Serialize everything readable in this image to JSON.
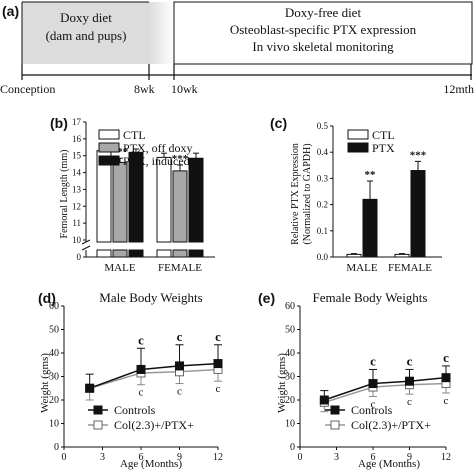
{
  "panel_a": {
    "label": "(a)",
    "box1_line1": "Doxy diet",
    "box1_line2": "(dam and pups)",
    "box2_line1": "Doxy-free diet",
    "box2_line2": "Osteoblast-specific PTX expression",
    "box2_line3": "In vivo skeletal monitoring",
    "timeline_labels": [
      "Conception",
      "8wk",
      "10wk",
      "12mth"
    ]
  },
  "colors": {
    "ctl_fill": "#ffffff",
    "ptx_off_fill": "#a8a8a8",
    "ptx_induced_fill": "#111111",
    "box1_fill": "#dcdcdc"
  },
  "chart_data": [
    {
      "panel": "(b)",
      "type": "bar",
      "ylabel": "Femoral Length (mm)",
      "ylim": [
        10,
        17
      ],
      "axis_break": [
        0,
        10
      ],
      "yticks": [
        "0",
        "10",
        "11",
        "12",
        "13",
        "14",
        "15",
        "16",
        "17"
      ],
      "categories": [
        "MALE",
        "FEMALE"
      ],
      "series": [
        {
          "name": "CTL",
          "values": [
            15.3,
            14.9
          ],
          "errors": [
            0.15,
            0.25
          ]
        },
        {
          "name": "PTX, off doxy",
          "values": [
            14.6,
            14.1
          ],
          "errors": [
            0.25,
            0.35
          ]
        },
        {
          "name": "PTX, induced",
          "values": [
            15.2,
            14.85
          ],
          "errors": [
            0.2,
            0.3
          ]
        }
      ],
      "annotations": [
        {
          "category": "MALE",
          "series": "PTX, off doxy",
          "text": "***"
        },
        {
          "category": "FEMALE",
          "series": "PTX, off doxy",
          "text": "***"
        }
      ],
      "legend": "top-right"
    },
    {
      "panel": "(c)",
      "type": "bar",
      "ylabel_line1": "Relative PTX Expression",
      "ylabel_line2": "(Normalized to GAPDH)",
      "ylim": [
        0,
        0.5
      ],
      "yticks": [
        "0.0",
        "0.1",
        "0.2",
        "0.3",
        "0.4",
        "0.5"
      ],
      "categories": [
        "MALE",
        "FEMALE"
      ],
      "series": [
        {
          "name": "CTL",
          "values": [
            0.01,
            0.01
          ],
          "errors": [
            0.003,
            0.003
          ]
        },
        {
          "name": "PTX",
          "values": [
            0.22,
            0.33
          ],
          "errors": [
            0.07,
            0.035
          ]
        }
      ],
      "annotations": [
        {
          "category": "MALE",
          "series": "PTX",
          "text": "**"
        },
        {
          "category": "FEMALE",
          "series": "PTX",
          "text": "***"
        }
      ],
      "legend": "top-right"
    },
    {
      "panel": "(d)",
      "type": "line",
      "title": "Male Body Weights",
      "xlabel": "Age (Months)",
      "ylabel": "Weight (gms)",
      "x": [
        2,
        6,
        9,
        12
      ],
      "xlim": [
        0,
        12
      ],
      "xticks": [
        "0",
        "3",
        "6",
        "9",
        "12"
      ],
      "ylim": [
        0,
        60
      ],
      "yticks": [
        "0",
        "10",
        "20",
        "30",
        "40",
        "50",
        "60"
      ],
      "series": [
        {
          "name": "Controls",
          "values": [
            25,
            33,
            34.5,
            35.5
          ],
          "errors_up": [
            6,
            9,
            9,
            8
          ]
        },
        {
          "name": "Col(2.3)+/PTX+",
          "values": [
            25,
            31.5,
            32,
            33
          ],
          "errors_down": [
            5,
            5,
            5,
            5
          ]
        }
      ],
      "annotations_top": [
        "c",
        "c",
        "c"
      ],
      "annotations_bottom": [
        "c",
        "c",
        "c"
      ],
      "legend": "bottom-left"
    },
    {
      "panel": "(e)",
      "type": "line",
      "title": "Female Body Weights",
      "xlabel": "Age (Months)",
      "ylabel": "Weight (gms)",
      "x": [
        2,
        6,
        9,
        12
      ],
      "xlim": [
        0,
        12
      ],
      "xticks": [
        "0",
        "3",
        "6",
        "9",
        "12"
      ],
      "ylim": [
        0,
        60
      ],
      "yticks": [
        "0",
        "10",
        "20",
        "30",
        "40",
        "50",
        "60"
      ],
      "series": [
        {
          "name": "Controls",
          "values": [
            20,
            27,
            28,
            29.5
          ],
          "errors_up": [
            4,
            6,
            5,
            5
          ]
        },
        {
          "name": "Col(2.3)+/PTX+",
          "values": [
            19,
            25.5,
            26.5,
            27
          ],
          "errors_down": [
            4,
            4,
            4,
            4
          ]
        }
      ],
      "annotations_top": [
        "c",
        "c",
        "c"
      ],
      "annotations_bottom": [
        "c",
        "c",
        "c"
      ],
      "legend": "bottom-left"
    }
  ]
}
